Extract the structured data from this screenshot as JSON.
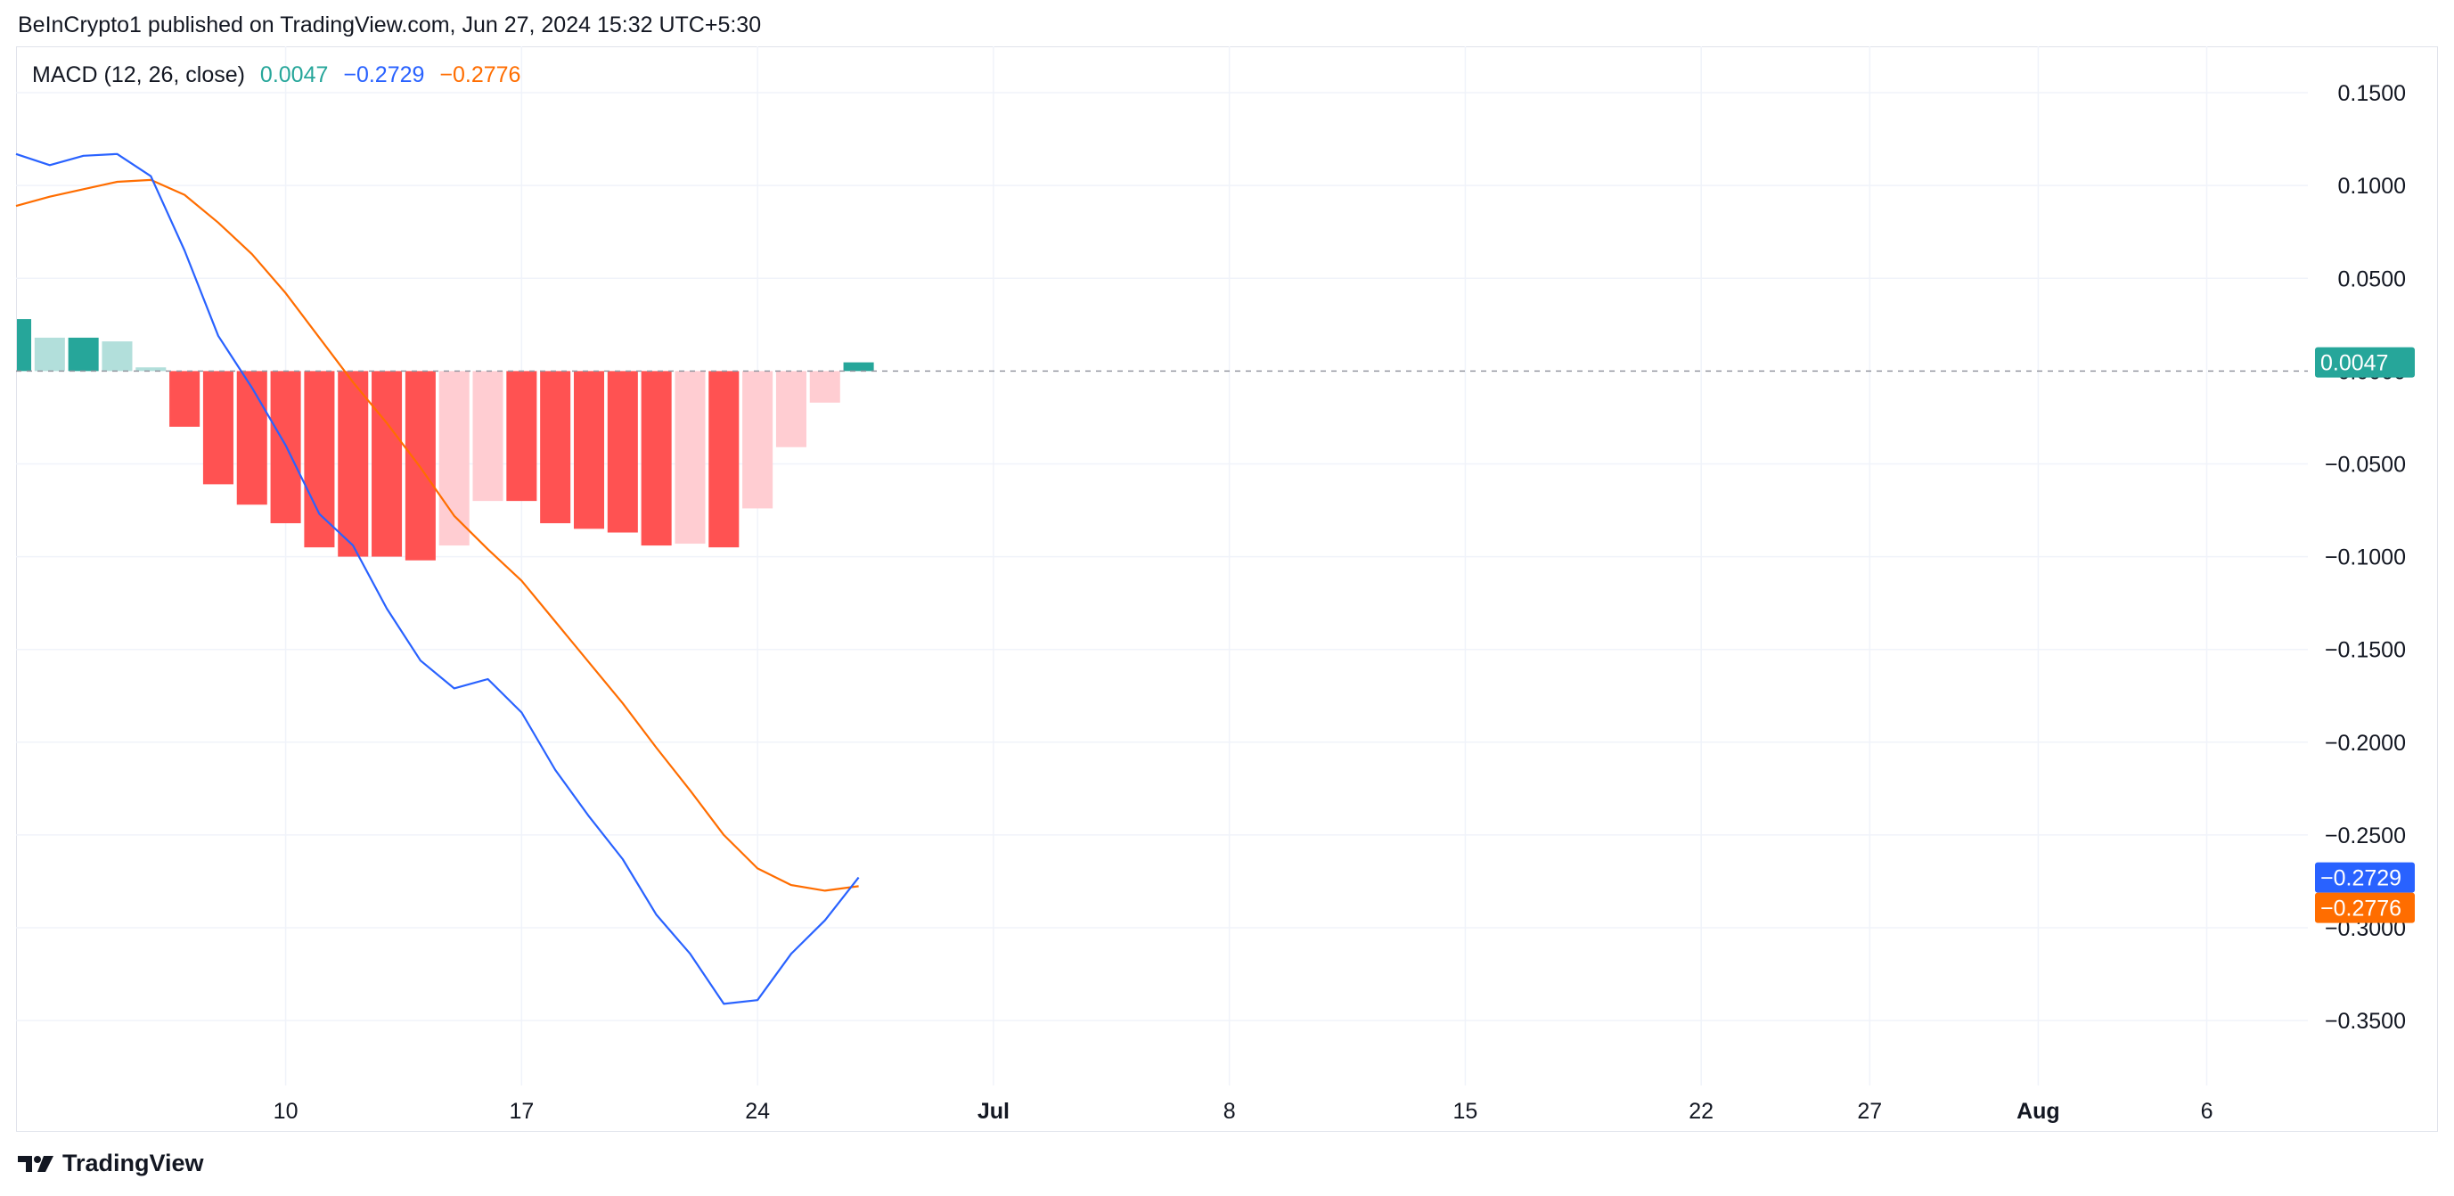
{
  "attribution": "BeInCrypto1 published on TradingView.com, Jun 27, 2024 15:32 UTC+5:30",
  "legend": {
    "indicator": "MACD (12, 26, close)",
    "hist_value": "0.0047",
    "macd_value": "−0.2729",
    "signal_value": "−0.2776"
  },
  "brand": {
    "name": "TradingView",
    "icon": "tradingview-logo-icon"
  },
  "colors": {
    "macd": "#2962ff",
    "signal": "#ff6d00",
    "hist_pos_strong": "#26a69a",
    "hist_pos_weak": "#b2dfdb",
    "hist_neg_strong": "#ff5252",
    "hist_neg_weak": "#ffcdd2",
    "grid": "#f0f3fa",
    "axis_text": "#131722"
  },
  "chart_data": {
    "type": "line",
    "title": "MACD (12, 26, close)",
    "x": [
      "2024-06-02",
      "2024-06-03",
      "2024-06-04",
      "2024-06-05",
      "2024-06-06",
      "2024-06-07",
      "2024-06-08",
      "2024-06-09",
      "2024-06-10",
      "2024-06-11",
      "2024-06-12",
      "2024-06-13",
      "2024-06-14",
      "2024-06-15",
      "2024-06-16",
      "2024-06-17",
      "2024-06-18",
      "2024-06-19",
      "2024-06-20",
      "2024-06-21",
      "2024-06-22",
      "2024-06-23",
      "2024-06-24",
      "2024-06-25",
      "2024-06-26",
      "2024-06-27"
    ],
    "x_range": [
      "2024-06-02",
      "2024-08-09"
    ],
    "x_tick_labels": [
      {
        "date": "2024-06-10",
        "label": "10",
        "bold": false
      },
      {
        "date": "2024-06-17",
        "label": "17",
        "bold": false
      },
      {
        "date": "2024-06-24",
        "label": "24",
        "bold": false
      },
      {
        "date": "2024-07-01",
        "label": "Jul",
        "bold": true
      },
      {
        "date": "2024-07-08",
        "label": "8",
        "bold": false
      },
      {
        "date": "2024-07-15",
        "label": "15",
        "bold": false
      },
      {
        "date": "2024-07-22",
        "label": "22",
        "bold": false
      },
      {
        "date": "2024-07-27",
        "label": "27",
        "bold": false
      },
      {
        "date": "2024-08-01",
        "label": "Aug",
        "bold": true
      },
      {
        "date": "2024-08-06",
        "label": "6",
        "bold": false
      }
    ],
    "y_ticks": [
      0.15,
      0.1,
      0.05,
      0,
      -0.05,
      -0.1,
      -0.15,
      -0.2,
      -0.25,
      -0.3,
      -0.35
    ],
    "y_tick_labels": [
      "0.1500",
      "0.1000",
      "0.0500",
      "0.0000",
      "−0.0500",
      "−0.1000",
      "−0.1500",
      "−0.2000",
      "−0.2500",
      "−0.3000",
      "−0.3500"
    ],
    "ylim": [
      -0.385,
      0.175
    ],
    "series": [
      {
        "name": "MACD",
        "color": "#2962ff",
        "values": [
          0.117,
          0.111,
          0.116,
          0.117,
          0.105,
          0.065,
          0.019,
          -0.009,
          -0.04,
          -0.077,
          -0.094,
          -0.128,
          -0.156,
          -0.171,
          -0.166,
          -0.184,
          -0.215,
          -0.24,
          -0.263,
          -0.293,
          -0.314,
          -0.341,
          -0.339,
          -0.314,
          -0.296,
          -0.2729
        ]
      },
      {
        "name": "Signal",
        "color": "#ff6d00",
        "values": [
          0.089,
          0.094,
          0.098,
          0.102,
          0.103,
          0.095,
          0.08,
          0.063,
          0.042,
          0.018,
          -0.006,
          -0.028,
          -0.052,
          -0.078,
          -0.096,
          -0.113,
          -0.135,
          -0.157,
          -0.179,
          -0.203,
          -0.226,
          -0.25,
          -0.268,
          -0.277,
          -0.28,
          -0.2776
        ]
      },
      {
        "name": "Histogram",
        "type": "bar",
        "values": [
          0.028,
          0.018,
          0.018,
          0.016,
          0.002,
          -0.03,
          -0.061,
          -0.072,
          -0.082,
          -0.095,
          -0.1,
          -0.1,
          -0.102,
          -0.094,
          -0.07,
          -0.07,
          -0.082,
          -0.085,
          -0.087,
          -0.094,
          -0.093,
          -0.095,
          -0.074,
          -0.041,
          -0.017,
          0.0047
        ]
      }
    ],
    "last_value_labels": [
      {
        "series": "Histogram",
        "label": "0.0047",
        "color": "#26a69a"
      },
      {
        "series": "MACD",
        "label": "−0.2729",
        "color": "#2962ff"
      },
      {
        "series": "Signal",
        "label": "−0.2776",
        "color": "#ff6d00"
      }
    ],
    "zero_line": "dashed",
    "grid": true,
    "legend": "top-left"
  }
}
